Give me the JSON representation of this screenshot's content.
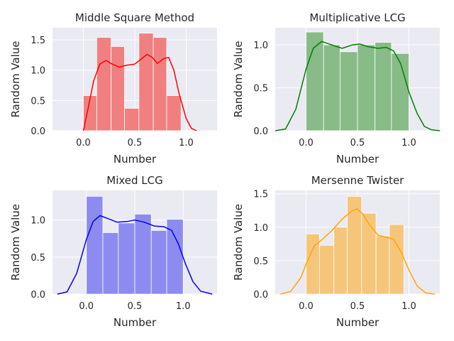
{
  "chart_data": [
    {
      "type": "bar",
      "title": "Middle Square Method",
      "xlabel": "Number",
      "ylabel": "Random Value",
      "xlim": [
        -0.3,
        1.3
      ],
      "ylim": [
        0,
        1.7
      ],
      "xticks": [
        "0.0",
        "0.5",
        "1.0"
      ],
      "yticks": [
        "0.0",
        "0.5",
        "1.0",
        "1.5"
      ],
      "color": "#f08080",
      "kde_color": "#ff0000",
      "bins": [
        {
          "x0": 0.0,
          "x1": 0.13,
          "value": 0.58
        },
        {
          "x0": 0.13,
          "x1": 0.27,
          "value": 1.54
        },
        {
          "x0": 0.27,
          "x1": 0.4,
          "value": 1.39
        },
        {
          "x0": 0.4,
          "x1": 0.54,
          "value": 0.37
        },
        {
          "x0": 0.54,
          "x1": 0.68,
          "value": 1.61
        },
        {
          "x0": 0.68,
          "x1": 0.81,
          "value": 1.54
        },
        {
          "x0": 0.81,
          "x1": 0.95,
          "value": 0.58
        }
      ],
      "kde": [
        [
          0.0,
          0.0
        ],
        [
          0.04,
          0.32
        ],
        [
          0.1,
          0.82
        ],
        [
          0.16,
          1.1
        ],
        [
          0.22,
          1.16
        ],
        [
          0.28,
          1.1
        ],
        [
          0.35,
          1.05
        ],
        [
          0.42,
          1.08
        ],
        [
          0.5,
          1.1
        ],
        [
          0.56,
          1.18
        ],
        [
          0.62,
          1.26
        ],
        [
          0.67,
          1.21
        ],
        [
          0.72,
          1.11
        ],
        [
          0.78,
          1.19
        ],
        [
          0.83,
          1.21
        ],
        [
          0.88,
          1.0
        ],
        [
          0.93,
          0.62
        ],
        [
          1.0,
          0.2
        ],
        [
          1.05,
          0.04
        ],
        [
          1.1,
          0.0
        ]
      ]
    },
    {
      "type": "bar",
      "title": "Multiplicative LCG",
      "xlabel": "Number",
      "ylabel": "Random Value",
      "xlim": [
        -0.3,
        1.3
      ],
      "ylim": [
        0,
        1.2
      ],
      "xticks": [
        "0.0",
        "0.5",
        "1.0"
      ],
      "yticks": [
        "0.0",
        "0.5",
        "1.0"
      ],
      "color": "#88bb88",
      "kde_color": "#008000",
      "bins": [
        {
          "x0": 0.0,
          "x1": 0.17,
          "value": 1.15
        },
        {
          "x0": 0.17,
          "x1": 0.33,
          "value": 1.0
        },
        {
          "x0": 0.33,
          "x1": 0.5,
          "value": 0.92
        },
        {
          "x0": 0.5,
          "x1": 0.67,
          "value": 1.0
        },
        {
          "x0": 0.67,
          "x1": 0.83,
          "value": 1.03
        },
        {
          "x0": 0.83,
          "x1": 1.0,
          "value": 0.9
        }
      ],
      "kde": [
        [
          -0.3,
          0.0
        ],
        [
          -0.2,
          0.02
        ],
        [
          -0.1,
          0.25
        ],
        [
          0.0,
          0.72
        ],
        [
          0.07,
          0.96
        ],
        [
          0.15,
          1.04
        ],
        [
          0.25,
          1.0
        ],
        [
          0.35,
          0.96
        ],
        [
          0.45,
          1.0
        ],
        [
          0.52,
          1.01
        ],
        [
          0.6,
          0.98
        ],
        [
          0.7,
          0.96
        ],
        [
          0.78,
          0.97
        ],
        [
          0.85,
          0.93
        ],
        [
          0.92,
          0.78
        ],
        [
          1.0,
          0.45
        ],
        [
          1.08,
          0.2
        ],
        [
          1.15,
          0.05
        ],
        [
          1.22,
          0.01
        ],
        [
          1.3,
          0.0
        ]
      ]
    },
    {
      "type": "bar",
      "title": "Mixed LCG",
      "xlabel": "Number",
      "ylabel": "Random Value",
      "xlim": [
        -0.35,
        1.35
      ],
      "ylim": [
        0,
        1.4
      ],
      "xticks": [
        "0.0",
        "0.5",
        "1.0"
      ],
      "yticks": [
        "0.0",
        "0.5",
        "1.0"
      ],
      "color": "#8c8cf0",
      "kde_color": "#0000ff",
      "bins": [
        {
          "x0": 0.0,
          "x1": 0.17,
          "value": 1.32
        },
        {
          "x0": 0.17,
          "x1": 0.33,
          "value": 0.83
        },
        {
          "x0": 0.33,
          "x1": 0.5,
          "value": 0.96
        },
        {
          "x0": 0.5,
          "x1": 0.67,
          "value": 1.08
        },
        {
          "x0": 0.67,
          "x1": 0.83,
          "value": 0.86
        },
        {
          "x0": 0.83,
          "x1": 1.0,
          "value": 1.01
        }
      ],
      "kde": [
        [
          -0.3,
          0.0
        ],
        [
          -0.2,
          0.03
        ],
        [
          -0.1,
          0.28
        ],
        [
          0.0,
          0.74
        ],
        [
          0.07,
          0.98
        ],
        [
          0.14,
          1.06
        ],
        [
          0.22,
          1.02
        ],
        [
          0.32,
          0.97
        ],
        [
          0.42,
          0.98
        ],
        [
          0.5,
          1.0
        ],
        [
          0.6,
          0.97
        ],
        [
          0.7,
          0.92
        ],
        [
          0.8,
          0.91
        ],
        [
          0.88,
          0.86
        ],
        [
          0.95,
          0.68
        ],
        [
          1.02,
          0.42
        ],
        [
          1.1,
          0.17
        ],
        [
          1.18,
          0.04
        ],
        [
          1.3,
          0.0
        ]
      ]
    },
    {
      "type": "bar",
      "title": "Mersenne Twister",
      "xlabel": "Number",
      "ylabel": "Random Value",
      "xlim": [
        -0.3,
        1.3
      ],
      "ylim": [
        0,
        1.55
      ],
      "xticks": [
        "0.0",
        "0.5",
        "1.0"
      ],
      "yticks": [
        "0.0",
        "0.5",
        "1.0",
        "1.5"
      ],
      "color": "#f5c67a",
      "kde_color": "#ffa500",
      "bins": [
        {
          "x0": 0.0,
          "x1": 0.13,
          "value": 0.9
        },
        {
          "x0": 0.13,
          "x1": 0.27,
          "value": 0.73
        },
        {
          "x0": 0.27,
          "x1": 0.4,
          "value": 1.0
        },
        {
          "x0": 0.4,
          "x1": 0.54,
          "value": 1.46
        },
        {
          "x0": 0.54,
          "x1": 0.68,
          "value": 1.21
        },
        {
          "x0": 0.68,
          "x1": 0.81,
          "value": 0.87
        },
        {
          "x0": 0.81,
          "x1": 0.95,
          "value": 1.04
        }
      ],
      "kde": [
        [
          -0.25,
          0.0
        ],
        [
          -0.15,
          0.04
        ],
        [
          -0.05,
          0.25
        ],
        [
          0.0,
          0.45
        ],
        [
          0.08,
          0.72
        ],
        [
          0.16,
          0.82
        ],
        [
          0.25,
          0.95
        ],
        [
          0.35,
          1.12
        ],
        [
          0.45,
          1.25
        ],
        [
          0.5,
          1.27
        ],
        [
          0.55,
          1.2
        ],
        [
          0.62,
          1.03
        ],
        [
          0.7,
          0.88
        ],
        [
          0.78,
          0.85
        ],
        [
          0.85,
          0.82
        ],
        [
          0.92,
          0.64
        ],
        [
          1.0,
          0.36
        ],
        [
          1.08,
          0.12
        ],
        [
          1.16,
          0.02
        ],
        [
          1.25,
          0.0
        ]
      ]
    }
  ]
}
